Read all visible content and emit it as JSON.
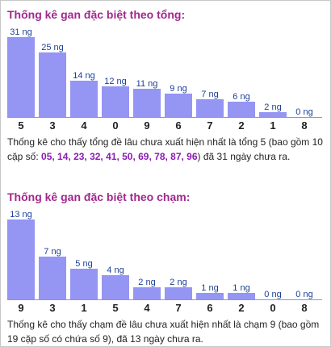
{
  "chart_data": [
    {
      "type": "bar",
      "title": "Thống kê gan đặc biệt theo tổng:",
      "categories": [
        "5",
        "3",
        "4",
        "0",
        "9",
        "6",
        "7",
        "2",
        "1",
        "8"
      ],
      "values": [
        31,
        25,
        14,
        12,
        11,
        9,
        7,
        6,
        2,
        0
      ],
      "value_labels": [
        "31 ng",
        "25 ng",
        "14 ng",
        "12 ng",
        "11 ng",
        "9 ng",
        "7 ng",
        "6 ng",
        "2 ng",
        "0 ng"
      ],
      "ylim": [
        0,
        31
      ],
      "grid": false,
      "bar_color": "#9595f3",
      "label_color": "#1c3f95"
    },
    {
      "type": "bar",
      "title": "Thống kê gan đặc biệt theo chạm:",
      "categories": [
        "9",
        "3",
        "1",
        "5",
        "4",
        "7",
        "6",
        "2",
        "0",
        "8"
      ],
      "values": [
        13,
        7,
        5,
        4,
        2,
        2,
        1,
        1,
        0,
        0
      ],
      "value_labels": [
        "13 ng",
        "7 ng",
        "5 ng",
        "4 ng",
        "2 ng",
        "2 ng",
        "1 ng",
        "1 ng",
        "0 ng",
        "0 ng"
      ],
      "ylim": [
        0,
        13
      ],
      "grid": false,
      "bar_color": "#9595f3",
      "label_color": "#1c3f95"
    }
  ],
  "desc1": {
    "pre": "Thống kê cho thấy tổng đề lâu chưa xuất hiện nhất là tổng 5 (bao gồm 10 cặp số: ",
    "numbers": "05, 14, 23, 32, 41, 50, 69, 78, 87, 96",
    "post": ") đã 31 ngày chưa ra."
  },
  "desc2": {
    "text": "Thống kê cho thấy chạm đề lâu chưa xuất hiện nhất là chạm 9 (bao gồm 19 cặp số có chứa số 9), đã 13 ngày chưa ra."
  },
  "colors": {
    "title": "#a0288c",
    "highlight": "#8a1bb4"
  }
}
